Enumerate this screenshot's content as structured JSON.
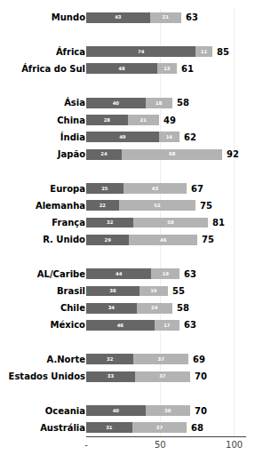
{
  "chart_data": {
    "type": "bar",
    "orientation": "horizontal",
    "stacked": true,
    "data_labels": true,
    "grid": true,
    "categories": [
      "Mundo",
      null,
      "África",
      "África do Sul",
      null,
      "Ásia",
      "China",
      "Índia",
      "Japão",
      null,
      "Europa",
      "Alemanha",
      "França",
      "R. Unido",
      null,
      "AL/Caribe",
      "Brasil",
      "Chile",
      "México",
      null,
      "A.Norte",
      "Estados Unidos",
      null,
      "Oceania",
      "Austrália"
    ],
    "series": [
      {
        "color": "#666666",
        "values": [
          43,
          0,
          74,
          48,
          0,
          40,
          28,
          49,
          24,
          0,
          25,
          22,
          32,
          29,
          0,
          44,
          36,
          34,
          46,
          0,
          32,
          33,
          0,
          40,
          31
        ]
      },
      {
        "color": "#b3b3b3",
        "values": [
          21,
          0,
          11,
          13,
          0,
          18,
          21,
          14,
          68,
          0,
          43,
          52,
          50,
          46,
          0,
          19,
          19,
          24,
          17,
          0,
          37,
          37,
          0,
          30,
          37
        ]
      }
    ],
    "totals": [
      63,
      0,
      85,
      61,
      0,
      58,
      49,
      62,
      92,
      0,
      67,
      75,
      81,
      75,
      0,
      63,
      55,
      58,
      63,
      0,
      69,
      70,
      0,
      70,
      68
    ],
    "xlim": [
      0,
      108
    ],
    "xticks": [
      {
        "value": 0,
        "label": "-"
      },
      50,
      100
    ]
  }
}
